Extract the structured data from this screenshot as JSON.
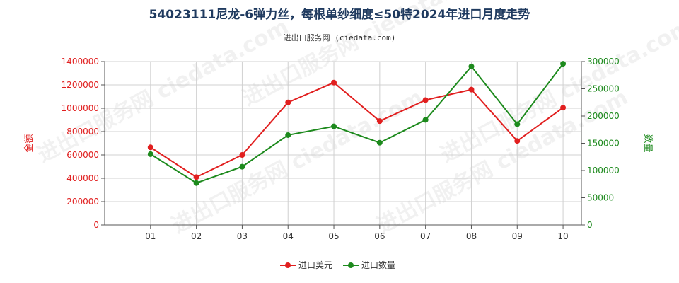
{
  "title": "54023111尼龙-6弹力丝，每根单纱细度≤50特2024年进口月度走势",
  "subtitle": "进出口服务网 (ciedata.com)",
  "watermark_text": "进出口服务网 ciedata.com",
  "colors": {
    "amount": "#e11f1f",
    "quantity": "#1d8a1d",
    "grid": "#d0d0d0",
    "axis": "#555555",
    "tick_x": "#333333"
  },
  "chart_data": {
    "type": "line",
    "categories": [
      "01",
      "02",
      "03",
      "04",
      "05",
      "06",
      "07",
      "08",
      "09",
      "10"
    ],
    "y_left": {
      "label": "金额",
      "range": [
        0,
        1400000
      ],
      "ticks": [
        "0",
        "200000",
        "400000",
        "600000",
        "800000",
        "1000000",
        "1200000",
        "1400000"
      ]
    },
    "y_right": {
      "label": "数量",
      "range": [
        0,
        300000
      ],
      "ticks": [
        "0",
        "50000",
        "100000",
        "150000",
        "200000",
        "250000",
        "300000"
      ]
    },
    "grid": true,
    "legend_position": "bottom-center",
    "series": [
      {
        "name": "进口美元",
        "axis": "left",
        "values": [
          665000,
          410000,
          600000,
          1050000,
          1220000,
          890000,
          1070000,
          1160000,
          720000,
          1005000
        ]
      },
      {
        "name": "进口数量",
        "axis": "right",
        "values": [
          130000,
          77000,
          107000,
          165000,
          181000,
          151000,
          193000,
          291000,
          185000,
          296000
        ]
      }
    ]
  }
}
